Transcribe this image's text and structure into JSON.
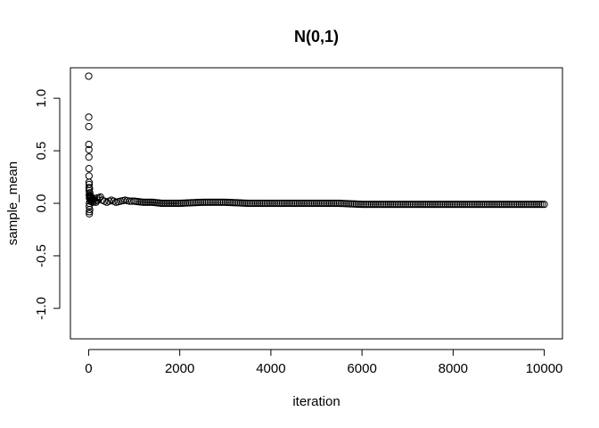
{
  "chart_data": {
    "type": "scatter",
    "title": "N(0,1)",
    "xlabel": "iteration",
    "ylabel": "sample_mean",
    "xlim": [
      -400,
      10400
    ],
    "ylim": [
      -1.29,
      1.29
    ],
    "x_ticks": [
      0,
      2000,
      4000,
      6000,
      8000,
      10000
    ],
    "x_tick_labels": [
      "0",
      "2000",
      "4000",
      "6000",
      "8000",
      "10000"
    ],
    "y_ticks": [
      -1.0,
      -0.5,
      0.0,
      0.5,
      1.0
    ],
    "y_tick_labels": [
      "-1.0",
      "-0.5",
      "0.0",
      "0.5",
      "1.0"
    ],
    "grid": false,
    "marker": "open-circle",
    "color": "#000000",
    "series": [
      {
        "x": [
          1,
          2,
          3,
          4,
          5,
          6,
          7,
          8,
          9,
          10,
          11,
          12,
          13,
          14,
          15,
          16,
          17,
          18,
          19,
          20,
          22,
          25,
          28,
          30,
          35,
          40,
          45,
          50,
          60,
          70,
          80,
          90,
          100,
          120,
          140,
          160,
          180,
          200,
          230,
          260,
          300,
          350,
          400,
          450,
          500,
          600,
          700,
          800,
          900,
          1000,
          1200,
          1400,
          1600,
          1800,
          2000,
          2500,
          3000,
          3500,
          4000,
          4500,
          5000,
          5500,
          6000,
          6500,
          7000,
          7500,
          8000,
          8500,
          9000,
          9500,
          10000
        ],
        "y": [
          1.21,
          0.82,
          0.73,
          0.56,
          0.51,
          0.44,
          0.33,
          0.26,
          0.2,
          0.15,
          0.12,
          0.18,
          0.08,
          -0.03,
          -0.1,
          -0.08,
          0.05,
          0.0,
          0.14,
          0.07,
          -0.06,
          0.1,
          0.02,
          0.06,
          0.04,
          0.07,
          0.03,
          0.05,
          0.06,
          0.02,
          0.04,
          0.01,
          0.03,
          0.04,
          0.02,
          0.01,
          0.05,
          0.03,
          0.05,
          0.06,
          0.03,
          0.02,
          0.01,
          0.02,
          0.03,
          0.01,
          0.02,
          0.03,
          0.02,
          0.02,
          0.01,
          0.01,
          0.0,
          0.0,
          0.0,
          0.01,
          0.01,
          0.0,
          0.0,
          0.0,
          0.0,
          0.0,
          -0.01,
          -0.01,
          -0.01,
          -0.01,
          -0.01,
          -0.01,
          -0.01,
          -0.01,
          -0.01
        ]
      }
    ]
  }
}
